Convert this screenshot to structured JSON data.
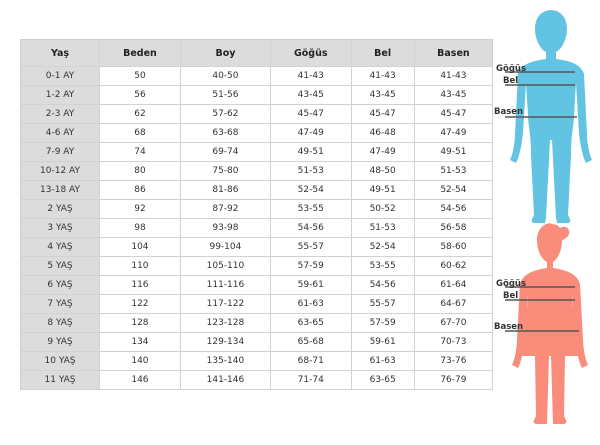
{
  "table": {
    "headers": [
      "Yaş",
      "Beden",
      "Boy",
      "Göğüs",
      "Bel",
      "Basen"
    ],
    "rows": [
      [
        "0-1 AY",
        "50",
        "40-50",
        "41-43",
        "41-43",
        "41-43"
      ],
      [
        "1-2 AY",
        "56",
        "51-56",
        "43-45",
        "43-45",
        "43-45"
      ],
      [
        "2-3 AY",
        "62",
        "57-62",
        "45-47",
        "45-47",
        "45-47"
      ],
      [
        "4-6 AY",
        "68",
        "63-68",
        "47-49",
        "46-48",
        "47-49"
      ],
      [
        "7-9 AY",
        "74",
        "69-74",
        "49-51",
        "47-49",
        "49-51"
      ],
      [
        "10-12 AY",
        "80",
        "75-80",
        "51-53",
        "48-50",
        "51-53"
      ],
      [
        "13-18 AY",
        "86",
        "81-86",
        "52-54",
        "49-51",
        "52-54"
      ],
      [
        "2 YAŞ",
        "92",
        "87-92",
        "53-55",
        "50-52",
        "54-56"
      ],
      [
        "3 YAŞ",
        "98",
        "93-98",
        "54-56",
        "51-53",
        "56-58"
      ],
      [
        "4 YAŞ",
        "104",
        "99-104",
        "55-57",
        "52-54",
        "58-60"
      ],
      [
        "5 YAŞ",
        "110",
        "105-110",
        "57-59",
        "53-55",
        "60-62"
      ],
      [
        "6 YAŞ",
        "116",
        "111-116",
        "59-61",
        "54-56",
        "61-64"
      ],
      [
        "7 YAŞ",
        "122",
        "117-122",
        "61-63",
        "55-57",
        "64-67"
      ],
      [
        "8 YAŞ",
        "128",
        "123-128",
        "63-65",
        "57-59",
        "67-70"
      ],
      [
        "9 YAŞ",
        "134",
        "129-134",
        "65-68",
        "59-61",
        "70-73"
      ],
      [
        "10 YAŞ",
        "140",
        "135-140",
        "68-71",
        "61-63",
        "73-76"
      ],
      [
        "11 YAŞ",
        "146",
        "141-146",
        "71-74",
        "63-65",
        "76-79"
      ]
    ]
  },
  "boy_figure": {
    "color": "#62c3e2",
    "labels": {
      "chest": "Göğüs",
      "waist": "Bel",
      "hip": "Basen"
    }
  },
  "girl_figure": {
    "color": "#fa8c7c",
    "labels": {
      "chest": "Göğüs",
      "waist": "Bel",
      "hip": "Basen"
    }
  }
}
